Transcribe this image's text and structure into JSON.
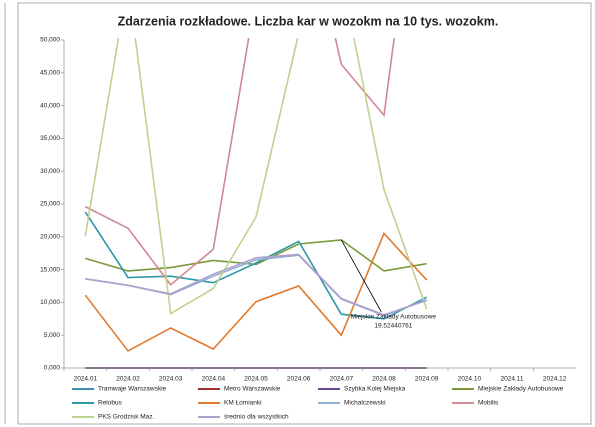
{
  "chart_data": {
    "type": "line",
    "title": "Zdarzenia rozkładowe. Liczba kar w wozokm na 10 tys. wozokm.",
    "categories": [
      "2024.01",
      "2024.02",
      "2024.03",
      "2024.04",
      "2024.05",
      "2024.06",
      "2024.07",
      "2024.08",
      "2024.09",
      "2024.10",
      "2024.11",
      "2024.12"
    ],
    "ylim": [
      0,
      50
    ],
    "yticks": [
      {
        "value": 0,
        "label": "0,000"
      },
      {
        "value": 5,
        "label": "5,000"
      },
      {
        "value": 10,
        "label": "10,000"
      },
      {
        "value": 15,
        "label": "15,000"
      },
      {
        "value": 20,
        "label": "20,000"
      },
      {
        "value": 25,
        "label": "25,000"
      },
      {
        "value": 30,
        "label": "30,000"
      },
      {
        "value": 35,
        "label": "35,000"
      },
      {
        "value": 40,
        "label": "40,000"
      },
      {
        "value": 45,
        "label": "45,000"
      },
      {
        "value": 50,
        "label": "50,000"
      }
    ],
    "grid": false,
    "series": [
      {
        "name": "Tramwaje Warszawskie",
        "color": "#3c8fb0",
        "values": [
          0,
          0,
          0,
          0,
          0,
          0,
          0,
          0,
          0,
          null,
          null,
          null
        ]
      },
      {
        "name": "Metro Warszawskie",
        "color": "#a03030",
        "values": [
          0,
          0,
          0,
          0,
          0,
          0,
          0,
          0,
          0,
          null,
          null,
          null
        ]
      },
      {
        "name": "Szybka Kolej Miejska",
        "color": "#6a4a94",
        "values": [
          0,
          0,
          0,
          0,
          0,
          0,
          0,
          0,
          0,
          null,
          null,
          null
        ]
      },
      {
        "name": "Miejskie Zakłady Autobusowe",
        "color": "#7a9a3a",
        "values": [
          16.7,
          14.8,
          15.3,
          16.4,
          15.8,
          18.9,
          19.52440761,
          14.8,
          15.9,
          null,
          null,
          null
        ],
        "value_labels": [
          null,
          null,
          null,
          null,
          null,
          null,
          "19,52440761",
          null,
          null,
          null,
          null,
          null
        ]
      },
      {
        "name": "Relobus",
        "color": "#2e98a8",
        "values": [
          23.8,
          13.8,
          14.0,
          13.0,
          16.0,
          19.3,
          8.2,
          7.5,
          10.8,
          null,
          null,
          null
        ]
      },
      {
        "name": "KM Łomianki",
        "color": "#e07a30",
        "values": [
          11.1,
          2.6,
          6.1,
          2.9,
          10.1,
          12.5,
          5.0,
          20.5,
          13.4,
          null,
          null,
          null
        ]
      },
      {
        "name": "Michalczewski",
        "color": "#8fb0d8",
        "values": [
          13.6,
          12.6,
          11.2,
          14.0,
          16.5,
          17.2,
          10.5,
          8.0,
          10.4,
          null,
          null,
          null
        ]
      },
      {
        "name": "Mobilis",
        "color": "#d08a90",
        "values": [
          24.6,
          21.3,
          12.7,
          18.1,
          57,
          75,
          46.3,
          38.5,
          88,
          null,
          null,
          null
        ]
      },
      {
        "name": "PKS Grodzisk Maz.",
        "color": "#bcd38e",
        "values": [
          20.1,
          59,
          8.3,
          12.1,
          23.0,
          51,
          60,
          27.2,
          9.0,
          null,
          null,
          null
        ]
      },
      {
        "name": "średnio dla wszystkich",
        "color": "#b0a0cc",
        "values": [
          13.6,
          12.6,
          11.3,
          14.3,
          16.8,
          17.3,
          10.6,
          8.1,
          10.3,
          null,
          null,
          null
        ]
      }
    ]
  }
}
